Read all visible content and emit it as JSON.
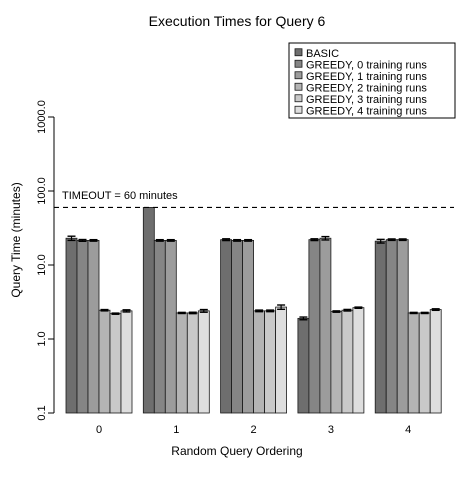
{
  "chart_data": {
    "type": "bar",
    "title": "Execution Times for Query 6",
    "xlabel": "Random Query Ordering",
    "ylabel": "Query Time (minutes)",
    "yscale": "log",
    "ylim": [
      0.1,
      1000
    ],
    "yticks": [
      "0.1",
      "1.0",
      "10.0",
      "100.0",
      "1000.0"
    ],
    "categories": [
      "0",
      "1",
      "2",
      "3",
      "4"
    ],
    "legend_position": "top-right",
    "timeout": {
      "label": "TIMEOUT =  60  minutes",
      "value": 60
    },
    "series": [
      {
        "name": "BASIC",
        "color": "#6e6e6e",
        "values": [
          23,
          60,
          22,
          1.9,
          21
        ],
        "errors": [
          1.5,
          0,
          0.6,
          0.08,
          1.2
        ]
      },
      {
        "name": "GREEDY, 0 training runs",
        "color": "#858585",
        "values": [
          21.5,
          21.5,
          21.5,
          22,
          22
        ],
        "errors": [
          0.6,
          0.5,
          0.5,
          0.6,
          0.5
        ]
      },
      {
        "name": "GREEDY, 1 training runs",
        "color": "#9c9c9c",
        "values": [
          21.5,
          21.5,
          21.5,
          23,
          22
        ],
        "errors": [
          0.5,
          0.5,
          0.5,
          1.2,
          0.5
        ]
      },
      {
        "name": "GREEDY, 2 training runs",
        "color": "#b4b4b4",
        "values": [
          2.45,
          2.25,
          2.4,
          2.35,
          2.25
        ],
        "errors": [
          0.05,
          0.04,
          0.06,
          0.05,
          0.04
        ]
      },
      {
        "name": "GREEDY, 3 training runs",
        "color": "#c9c9c9",
        "values": [
          2.2,
          2.25,
          2.4,
          2.45,
          2.25
        ],
        "errors": [
          0.04,
          0.05,
          0.06,
          0.06,
          0.04
        ]
      },
      {
        "name": "GREEDY, 4 training runs",
        "color": "#dedede",
        "values": [
          2.4,
          2.4,
          2.7,
          2.65,
          2.5
        ],
        "errors": [
          0.08,
          0.1,
          0.18,
          0.05,
          0.06
        ]
      }
    ]
  }
}
